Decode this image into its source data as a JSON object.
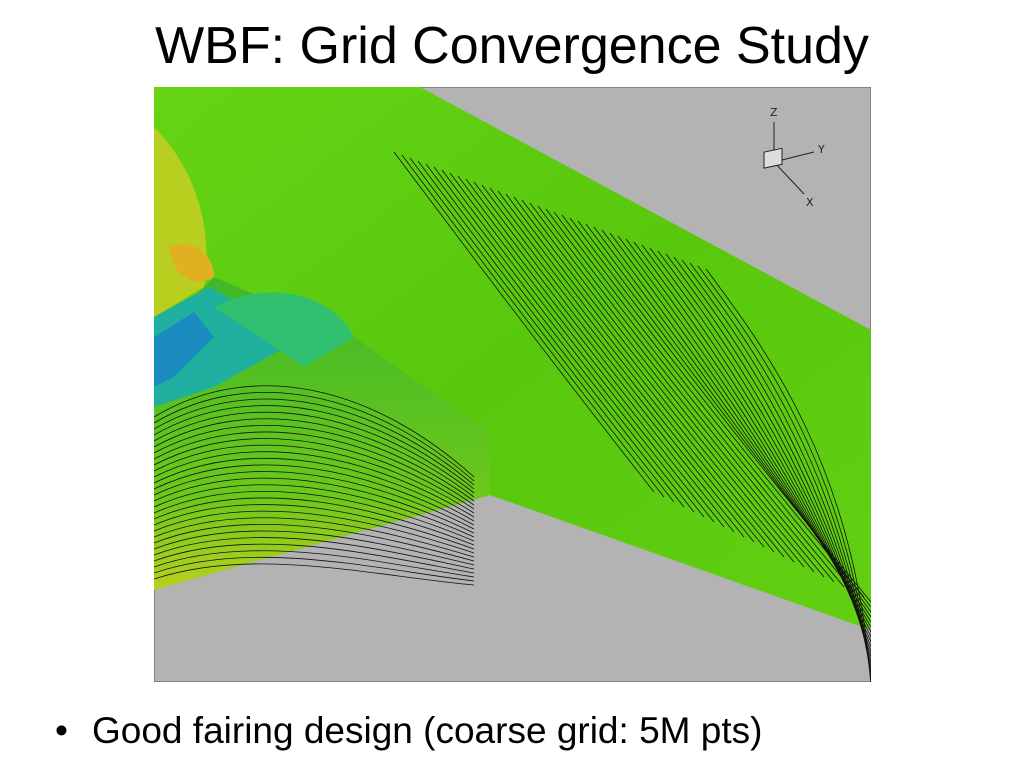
{
  "header": {
    "title": "WBF: Grid Convergence Study"
  },
  "figure": {
    "axes": {
      "z": "Z",
      "y": "Y",
      "x": "X"
    }
  },
  "bullets": [
    "Good fairing design (coarse grid: 5M pts)"
  ]
}
